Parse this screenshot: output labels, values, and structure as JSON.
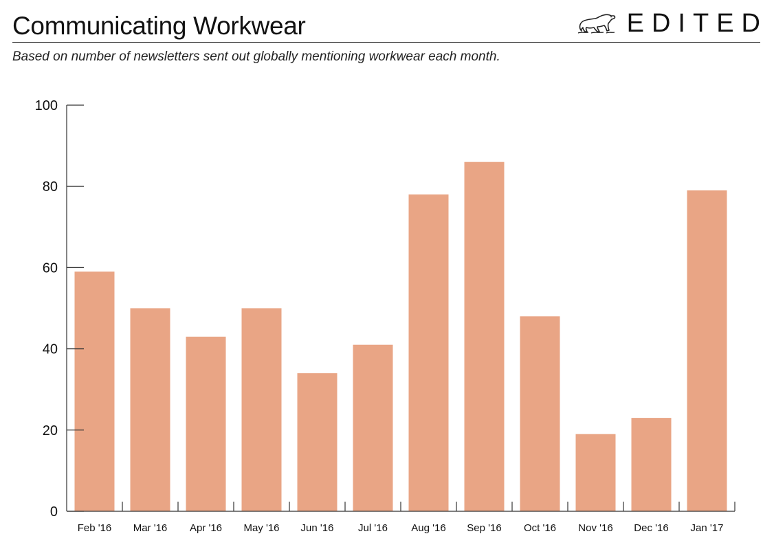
{
  "header": {
    "title": "Communicating Workwear",
    "subtitle": "Based on number of newsletters sent out globally mentioning workwear each month.",
    "logo_text": "EDITED",
    "logo_icon": "polar-bear-icon"
  },
  "colors": {
    "bar": "#e9a585",
    "axis": "#333333",
    "text": "#111111"
  },
  "chart_data": {
    "type": "bar",
    "categories": [
      "Feb '16",
      "Mar '16",
      "Apr '16",
      "May '16",
      "Jun '16",
      "Jul '16",
      "Aug '16",
      "Sep '16",
      "Oct '16",
      "Nov '16",
      "Dec '16",
      "Jan '17"
    ],
    "values": [
      59,
      50,
      43,
      50,
      34,
      41,
      78,
      86,
      48,
      19,
      23,
      79
    ],
    "title": "Communicating Workwear",
    "subtitle": "Based on number of newsletters sent out globally mentioning workwear each month.",
    "xlabel": "",
    "ylabel": "",
    "ylim": [
      0,
      100
    ],
    "yticks": [
      0,
      20,
      40,
      60,
      80,
      100
    ],
    "grid": false,
    "legend": "none"
  }
}
